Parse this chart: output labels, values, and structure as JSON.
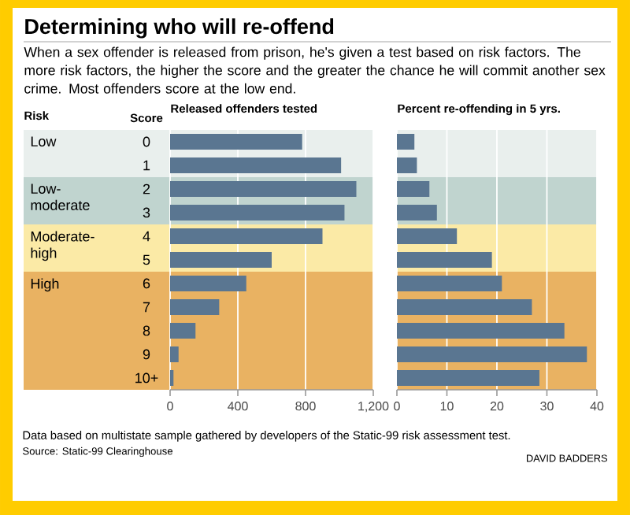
{
  "chart_data": [
    {
      "type": "bar",
      "orientation": "horizontal",
      "title": "Released offenders tested",
      "ylabel": "Score",
      "categories": [
        "0",
        "1",
        "2",
        "3",
        "4",
        "5",
        "6",
        "7",
        "8",
        "9",
        "10+"
      ],
      "values": [
        780,
        1010,
        1100,
        1030,
        900,
        600,
        450,
        290,
        150,
        50,
        20
      ],
      "color": "#5a7691",
      "xlim": [
        0,
        1200
      ],
      "xticks": [
        0,
        400,
        800,
        {
          "value": 1200,
          "label": "1,200"
        }
      ],
      "grid": "x",
      "bands": [
        {
          "axis": "y",
          "from": "0",
          "to": "1",
          "label": "Low",
          "color": "#e9efed"
        },
        {
          "axis": "y",
          "from": "2",
          "to": "3",
          "label": "Low-moderate",
          "color": "#c0d4cf"
        },
        {
          "axis": "y",
          "from": "4",
          "to": "5",
          "label": "Moderate-high",
          "color": "#fbeaa6"
        },
        {
          "axis": "y",
          "from": "6",
          "to": "10+",
          "label": "High",
          "color": "#e9b262"
        }
      ],
      "annotations": [
        "Determining who will re-offend",
        "When a sex offender is released from prison, he's given a test based on risk factors. The more risk factors, the higher the score and the greater the chance he will commit another sex crime. Most offenders score at the low end.",
        "Risk",
        "Data based on multistate sample gathered by developers of the Static-99 risk assessment test.",
        "Source: Static-99 Clearinghouse",
        "DAVID BADDERS"
      ]
    },
    {
      "type": "bar",
      "orientation": "horizontal",
      "title": "Percent re-offending in 5 yrs.",
      "tick_labels": "x",
      "categories": [
        "0",
        "1",
        "2",
        "3",
        "4",
        "5",
        "6",
        "7",
        "8",
        "9",
        "10+"
      ],
      "values": [
        3.5,
        4,
        6.5,
        8,
        12,
        19,
        21,
        27,
        33.5,
        38,
        28.5
      ],
      "color": "#5a7691",
      "xlim": [
        0,
        40
      ],
      "xticks": [
        0,
        10,
        20,
        30,
        40
      ],
      "grid": "x",
      "bands": [
        {
          "axis": "y",
          "from": "0",
          "to": "1",
          "color": "#e9efed"
        },
        {
          "axis": "y",
          "from": "2",
          "to": "3",
          "color": "#c0d4cf"
        },
        {
          "axis": "y",
          "from": "4",
          "to": "5",
          "color": "#fbeaa6"
        },
        {
          "axis": "y",
          "from": "6",
          "to": "10+",
          "color": "#e9b262"
        }
      ]
    }
  ]
}
